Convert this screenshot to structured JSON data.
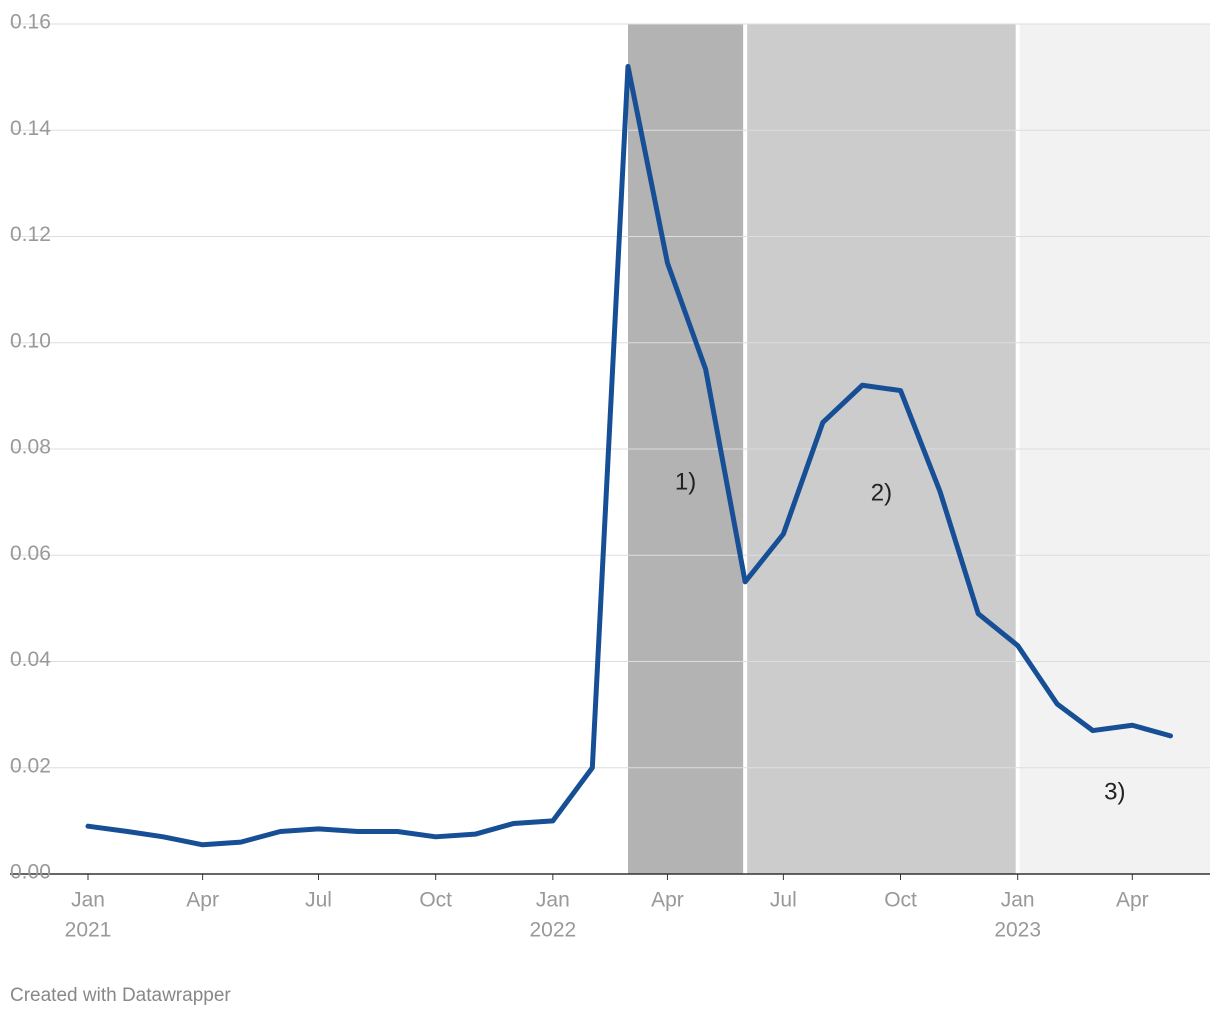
{
  "chart_data": {
    "type": "line",
    "x": [
      "2021-01",
      "2021-02",
      "2021-03",
      "2021-04",
      "2021-05",
      "2021-06",
      "2021-07",
      "2021-08",
      "2021-09",
      "2021-10",
      "2021-11",
      "2021-12",
      "2022-01",
      "2022-02",
      "2022-03",
      "2022-04",
      "2022-05",
      "2022-06",
      "2022-07",
      "2022-08",
      "2022-09",
      "2022-10",
      "2022-11",
      "2022-12",
      "2023-01",
      "2023-02",
      "2023-03",
      "2023-04",
      "2023-05"
    ],
    "series": [
      {
        "color": "#164f95",
        "values": [
          0.009,
          0.008,
          0.007,
          0.0055,
          0.006,
          0.008,
          0.0085,
          0.008,
          0.008,
          0.007,
          0.0075,
          0.0095,
          0.01,
          0.02,
          0.152,
          0.115,
          0.095,
          0.055,
          0.064,
          0.085,
          0.092,
          0.091,
          0.072,
          0.049,
          0.043,
          0.032,
          0.027,
          0.028,
          0.026
        ]
      }
    ],
    "xlim": [
      "2021-01",
      "2023-06"
    ],
    "xticks": [
      {
        "value": "2021-01",
        "label": "Jan",
        "sublabel": "2021"
      },
      {
        "value": "2021-04",
        "label": "Apr"
      },
      {
        "value": "2021-07",
        "label": "Jul"
      },
      {
        "value": "2021-10",
        "label": "Oct"
      },
      {
        "value": "2022-01",
        "label": "Jan",
        "sublabel": "2022"
      },
      {
        "value": "2022-04",
        "label": "Apr"
      },
      {
        "value": "2022-07",
        "label": "Jul"
      },
      {
        "value": "2022-10",
        "label": "Oct"
      },
      {
        "value": "2023-01",
        "label": "Jan",
        "sublabel": "2023"
      },
      {
        "value": "2023-04",
        "label": "Apr"
      }
    ],
    "ylim": [
      0,
      0.16
    ],
    "yticks": [
      {
        "value": 0,
        "label": "0.00"
      },
      {
        "value": 0.02,
        "label": "0.02"
      },
      {
        "value": 0.04,
        "label": "0.04"
      },
      {
        "value": 0.06,
        "label": "0.06"
      },
      {
        "value": 0.08,
        "label": "0.08"
      },
      {
        "value": 0.1,
        "label": "0.10"
      },
      {
        "value": 0.12,
        "label": "0.12"
      },
      {
        "value": 0.14,
        "label": "0.14"
      },
      {
        "value": 0.16,
        "label": "0.16"
      }
    ],
    "grid": true,
    "regions": [
      {
        "start": "2022-03",
        "end": "2022-06",
        "label": "1)",
        "color": "#b3b3b3"
      },
      {
        "start": "2022-06",
        "end": "2023-01",
        "label": "2)",
        "color": "#cccccc"
      },
      {
        "start": "2023-01",
        "end": "2023-06",
        "label": "3)",
        "color": "#f2f2f2"
      }
    ],
    "credit": "Created with Datawrapper"
  }
}
